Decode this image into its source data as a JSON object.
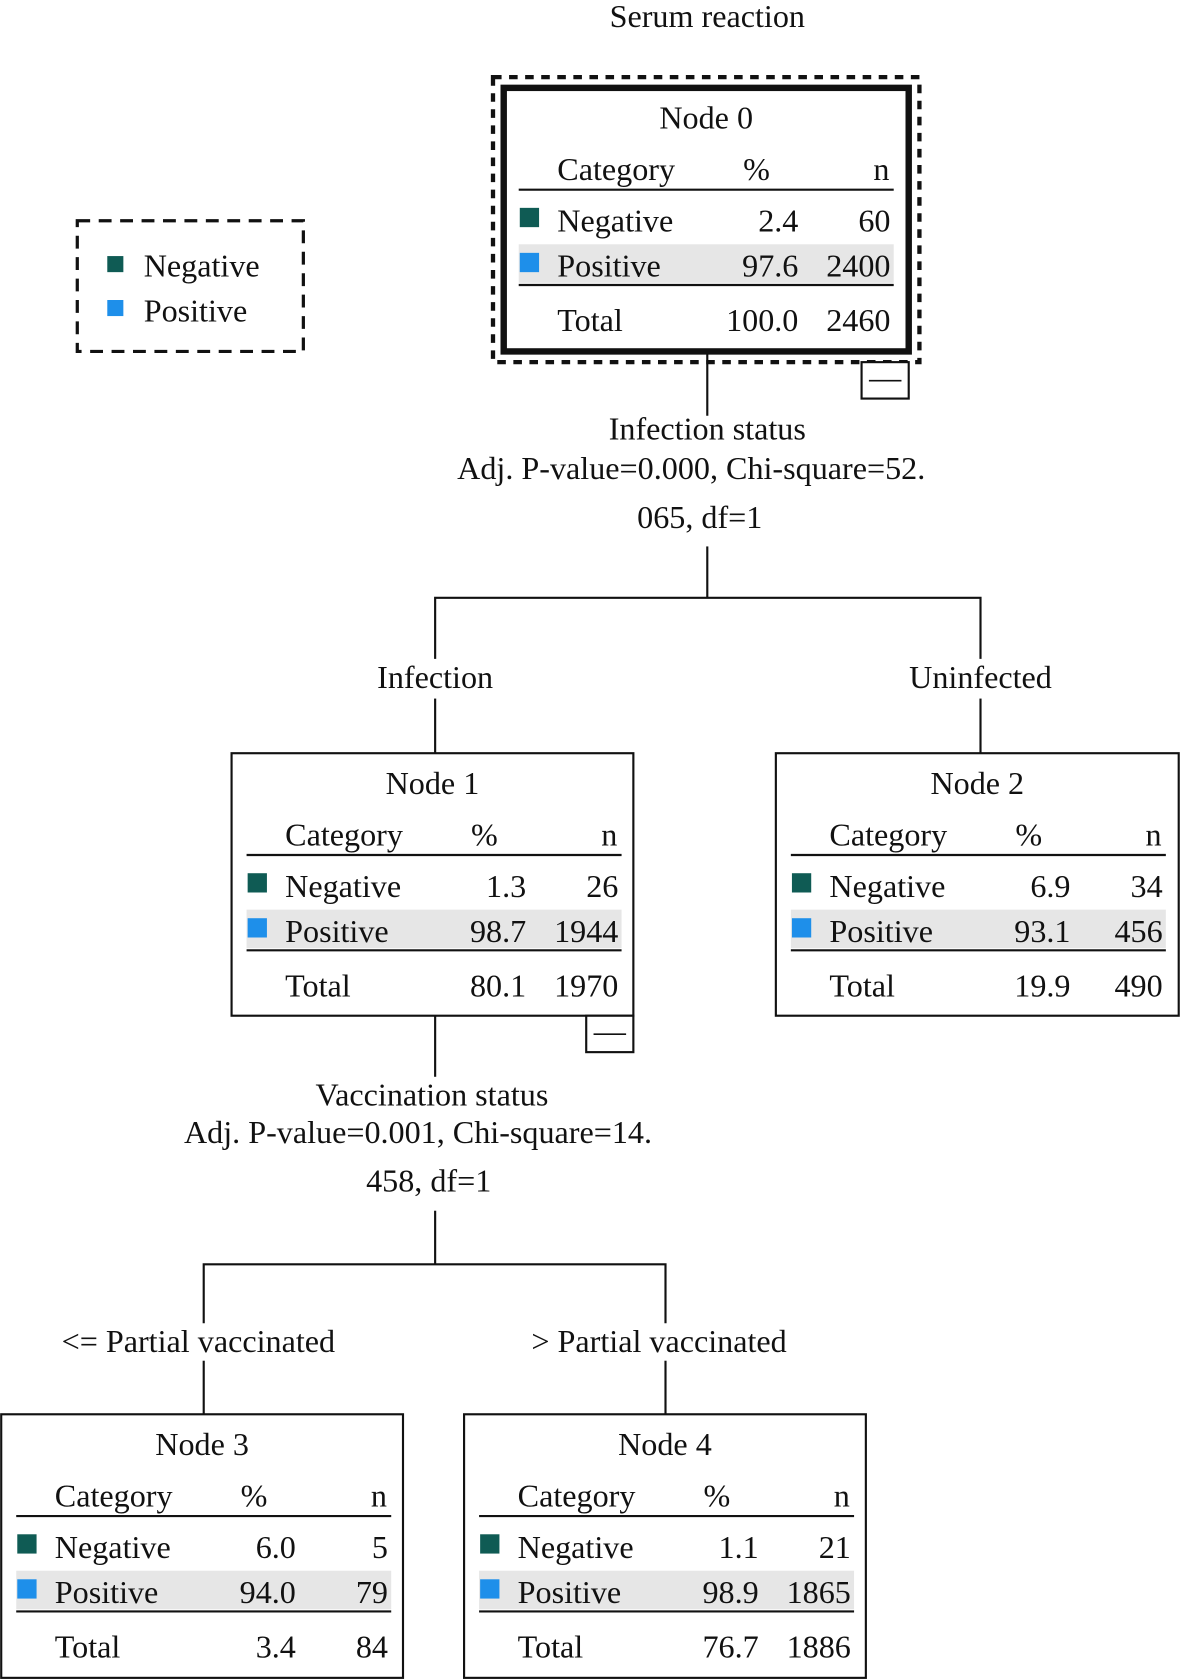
{
  "title": "Serum reaction",
  "colors": {
    "negative": "#0f5b54",
    "positive": "#1e8fea",
    "highlight_row": "#e6e6e6"
  },
  "legend": {
    "items": [
      {
        "label": "Negative",
        "color_key": "negative"
      },
      {
        "label": "Positive",
        "color_key": "positive"
      }
    ]
  },
  "table_headers": {
    "category": "Category",
    "percent": "%",
    "n": "n"
  },
  "nodes": [
    {
      "title": "Node 0",
      "rows": [
        {
          "category": "Negative",
          "percent": "2.4",
          "n": "60"
        },
        {
          "category": "Positive",
          "percent": "97.6",
          "n": "2400"
        }
      ],
      "total": {
        "label": "Total",
        "percent": "100.0",
        "n": "2460"
      },
      "selected": true,
      "collapse_button": "—"
    },
    {
      "title": "Node 1",
      "rows": [
        {
          "category": "Negative",
          "percent": "1.3",
          "n": "26"
        },
        {
          "category": "Positive",
          "percent": "98.7",
          "n": "1944"
        }
      ],
      "total": {
        "label": "Total",
        "percent": "80.1",
        "n": "1970"
      },
      "collapse_button": "—"
    },
    {
      "title": "Node 2",
      "rows": [
        {
          "category": "Negative",
          "percent": "6.9",
          "n": "34"
        },
        {
          "category": "Positive",
          "percent": "93.1",
          "n": "456"
        }
      ],
      "total": {
        "label": "Total",
        "percent": "19.9",
        "n": "490"
      }
    },
    {
      "title": "Node 3",
      "rows": [
        {
          "category": "Negative",
          "percent": "6.0",
          "n": "5"
        },
        {
          "category": "Positive",
          "percent": "94.0",
          "n": "79"
        }
      ],
      "total": {
        "label": "Total",
        "percent": "3.4",
        "n": "84"
      }
    },
    {
      "title": "Node 4",
      "rows": [
        {
          "category": "Negative",
          "percent": "1.1",
          "n": "21"
        },
        {
          "category": "Positive",
          "percent": "98.9",
          "n": "1865"
        }
      ],
      "total": {
        "label": "Total",
        "percent": "76.7",
        "n": "1886"
      }
    }
  ],
  "splits": [
    {
      "variable": "Infection status",
      "stats_line1": "Adj. P-value=0.000, Chi-square=52.",
      "stats_line2": "065, df=1",
      "branches": [
        "Infection",
        "Uninfected"
      ]
    },
    {
      "variable": "Vaccination status",
      "stats_line1": "Adj. P-value=0.001, Chi-square=14.",
      "stats_line2": "458, df=1",
      "branches": [
        "<= Partial vaccinated",
        "> Partial vaccinated"
      ]
    }
  ]
}
